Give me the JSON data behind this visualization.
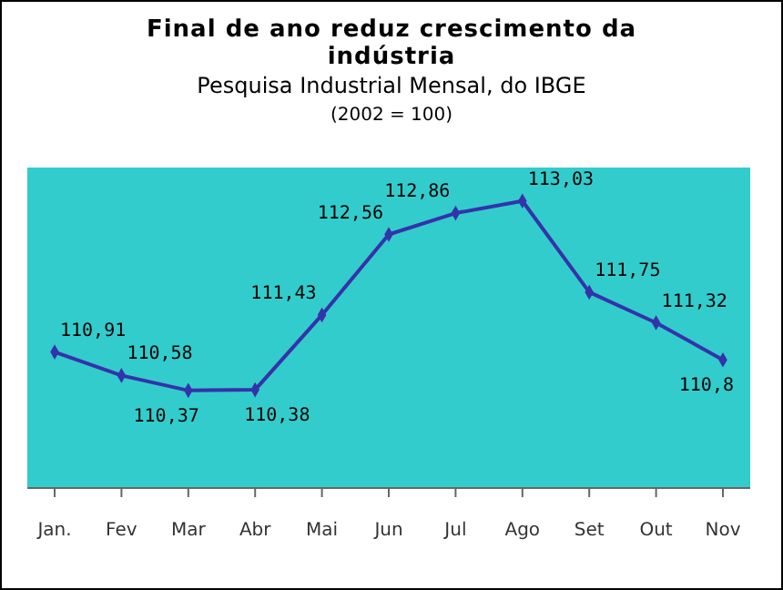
{
  "chart_data": {
    "type": "line",
    "title": "Final de ano reduz crescimento da indústria",
    "subtitle": "Pesquisa Industrial Mensal, do IBGE",
    "annotations": [
      "(2002 = 100)"
    ],
    "categories": [
      "Jan.",
      "Fev",
      "Mar",
      "Abr",
      "Mai",
      "Jun",
      "Jul",
      "Ago",
      "Set",
      "Out",
      "Nov"
    ],
    "series": [
      {
        "color": "#3333aa",
        "values": [
          110.91,
          110.58,
          110.37,
          110.38,
          111.43,
          112.56,
          112.86,
          113.03,
          111.75,
          111.32,
          110.8
        ],
        "value_labels": [
          "110,91",
          "110,58",
          "110,37",
          "110,38",
          "111,43",
          "112,56",
          "112,86",
          "113,03",
          "111,75",
          "111,32",
          "110,8"
        ]
      }
    ],
    "ylim": [
      109,
      113.5
    ],
    "marker": "diamond",
    "line_style": "solid"
  }
}
